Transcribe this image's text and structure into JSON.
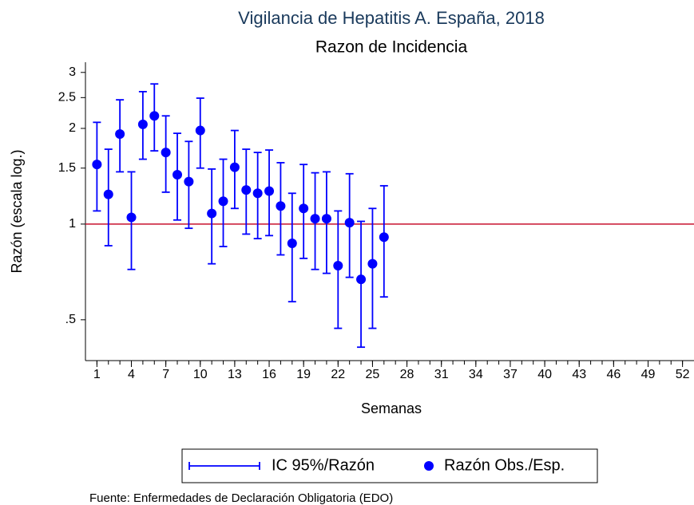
{
  "chart_data": {
    "type": "errorbar",
    "title": "Vigilancia de Hepatitis A. España, 2018",
    "subtitle": "Razon de Incidencia",
    "xlabel": "Semanas",
    "ylabel": "Razón (escala log.)",
    "source": "Fuente: Enfermedades de Declaración Obligatoria (EDO)",
    "x": [
      1,
      2,
      3,
      4,
      5,
      6,
      7,
      8,
      9,
      10,
      11,
      12,
      13,
      14,
      15,
      16,
      17,
      18,
      19,
      20,
      21,
      22,
      23,
      24,
      25,
      26
    ],
    "series": [
      {
        "name": "Razón Obs./Esp.",
        "color": "#0000ff",
        "values": [
          1.54,
          1.24,
          1.92,
          1.05,
          2.06,
          2.19,
          1.68,
          1.43,
          1.36,
          1.97,
          1.08,
          1.18,
          1.51,
          1.28,
          1.25,
          1.27,
          1.14,
          0.87,
          1.12,
          1.04,
          1.04,
          0.74,
          1.01,
          0.67,
          0.75,
          0.91
        ]
      }
    ],
    "interval": {
      "name": "IC 95%/Razón",
      "color": "#0000ff",
      "lower": [
        1.1,
        0.855,
        1.46,
        0.72,
        1.6,
        1.7,
        1.26,
        1.03,
        0.97,
        1.5,
        0.75,
        0.85,
        1.12,
        0.93,
        0.9,
        0.92,
        0.8,
        0.57,
        0.78,
        0.72,
        0.7,
        0.47,
        0.68,
        0.41,
        0.47,
        0.59
      ],
      "upper": [
        2.09,
        1.72,
        2.46,
        1.46,
        2.61,
        2.76,
        2.19,
        1.93,
        1.82,
        2.49,
        1.49,
        1.6,
        1.97,
        1.72,
        1.68,
        1.71,
        1.56,
        1.25,
        1.54,
        1.45,
        1.46,
        1.1,
        1.44,
        1.02,
        1.12,
        1.32
      ]
    },
    "reference_line": {
      "value": 1,
      "color": "#c8102e"
    },
    "xlim": [
      0,
      53
    ],
    "xticks": [
      1,
      4,
      7,
      10,
      13,
      16,
      19,
      22,
      25,
      28,
      31,
      34,
      37,
      40,
      43,
      46,
      49,
      52
    ],
    "xminorticks": [
      1,
      2,
      3,
      4,
      5,
      6,
      7,
      8,
      9,
      10,
      11,
      12,
      13,
      14,
      15,
      16,
      17,
      18,
      19,
      20,
      21,
      22,
      23,
      24,
      25,
      26,
      27,
      28,
      29,
      30,
      31,
      32,
      33,
      34,
      35,
      36,
      37,
      38,
      39,
      40,
      41,
      42,
      43,
      44,
      45,
      46,
      47,
      48,
      49,
      50,
      51,
      52
    ],
    "ylim": [
      0.372,
      3.23
    ],
    "yticks": [
      {
        "value": 0.5,
        "label": ".5"
      },
      1,
      1.5,
      2,
      2.5,
      3
    ],
    "log_y": true,
    "legend": "bottom"
  }
}
